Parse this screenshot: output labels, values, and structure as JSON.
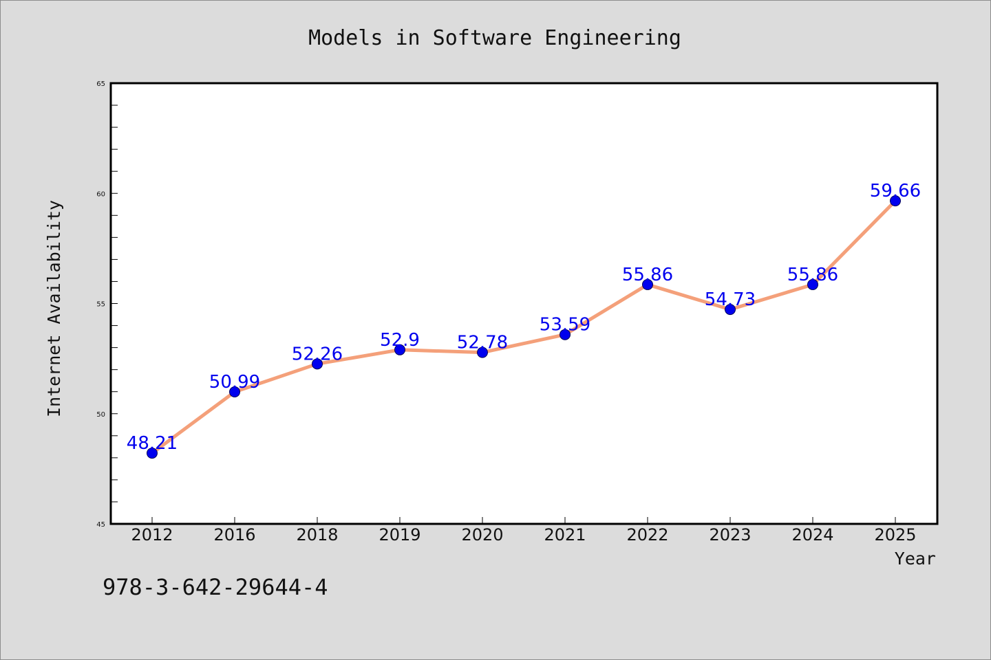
{
  "chart_data": {
    "type": "line",
    "title": "Models in Software Engineering",
    "xlabel": "Year",
    "ylabel": "Internet Availability",
    "categories": [
      "2012",
      "2016",
      "2018",
      "2019",
      "2020",
      "2021",
      "2022",
      "2023",
      "2024",
      "2025"
    ],
    "series": [
      {
        "values": [
          48.21,
          50.99,
          52.26,
          52.9,
          52.78,
          53.59,
          55.86,
          54.73,
          55.86,
          59.66
        ],
        "data_labels": [
          "48.21",
          "50.99",
          "52.26",
          "52.9",
          "52.78",
          "53.59",
          "55.86",
          "54.73",
          "55.86",
          "59.66"
        ]
      }
    ],
    "ylim": [
      45,
      65
    ],
    "yticks": [
      "45",
      "50",
      "55",
      "60",
      "65"
    ],
    "grid": false,
    "colors": {
      "line": "#f4a07a",
      "marker": "#0000ee",
      "label": "#0000ee",
      "background": "#dcdcdc",
      "plot_background": "#ffffff"
    }
  },
  "footer": {
    "isbn": "978-3-642-29644-4"
  }
}
